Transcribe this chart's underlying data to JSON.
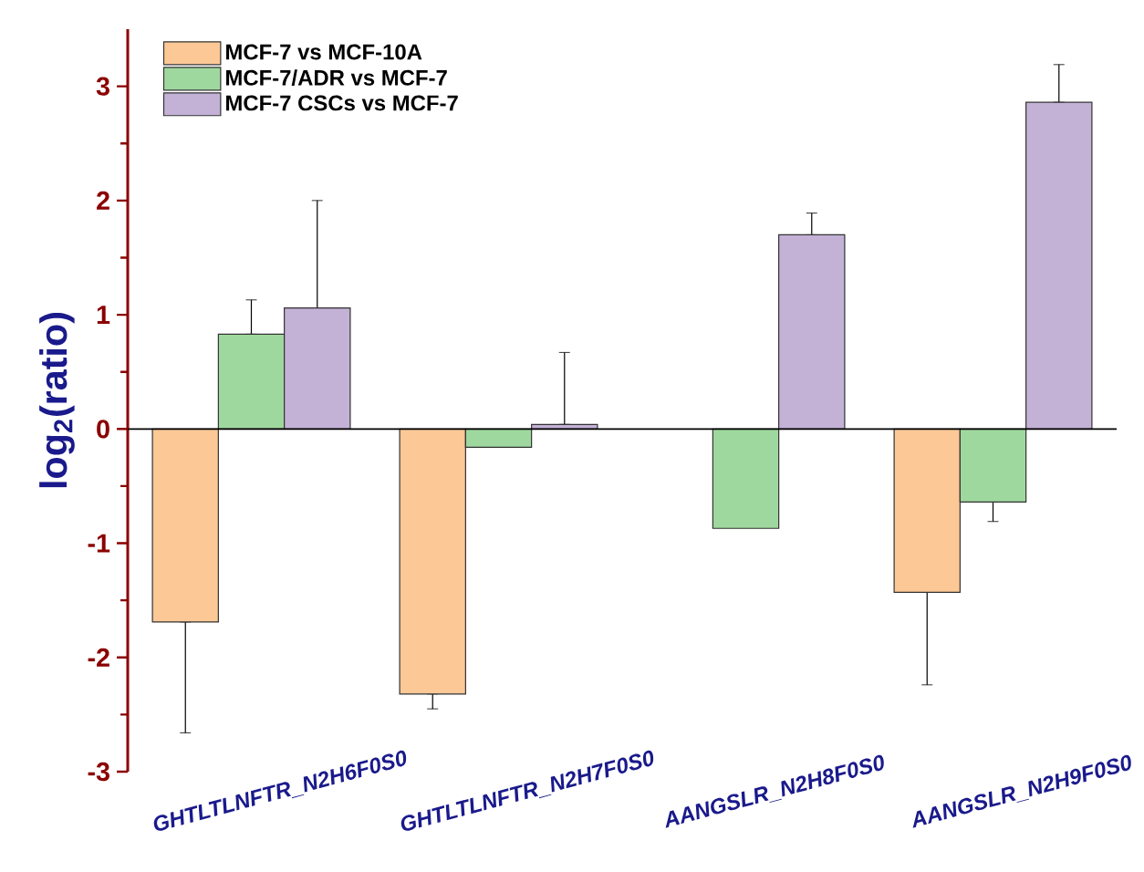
{
  "chart_data": {
    "type": "bar",
    "ylabel": "log$_{2}$(ratio)",
    "categories": [
      "GHTLTLNFTR_N2H6F0S0",
      "GHTLTLNFTR_N2H7F0S0",
      "AANGSLR_N2H8F0S0",
      "AANGSLR_N2H9F0S0"
    ],
    "series": [
      {
        "name": "MCF-7 vs MCF-10A",
        "color": "#fbc896",
        "values": [
          -1.69,
          -2.32,
          null,
          -1.43
        ],
        "errors": [
          [
            -2.66,
            -1.69
          ],
          [
            -2.45,
            -2.32
          ],
          null,
          [
            -2.24,
            -1.43
          ]
        ]
      },
      {
        "name": "MCF-7/ADR vs MCF-7",
        "color": "#9fd89e",
        "values": [
          0.83,
          -0.16,
          -0.87,
          -0.64
        ],
        "errors": [
          [
            0.83,
            1.13
          ],
          null,
          null,
          [
            -0.81,
            -0.64
          ]
        ]
      },
      {
        "name": "MCF-7 CSCs vs MCF-7",
        "color": "#c3b1d6",
        "values": [
          1.06,
          0.04,
          1.7,
          2.86
        ],
        "errors": [
          [
            1.06,
            2.0
          ],
          [
            0.04,
            0.67
          ],
          [
            1.7,
            1.89
          ],
          [
            2.86,
            3.19
          ]
        ]
      }
    ],
    "ylim": [
      -3,
      3.5
    ],
    "yticks": [
      -3,
      -2,
      -1,
      0,
      1,
      2,
      3
    ],
    "legend": "top left"
  }
}
